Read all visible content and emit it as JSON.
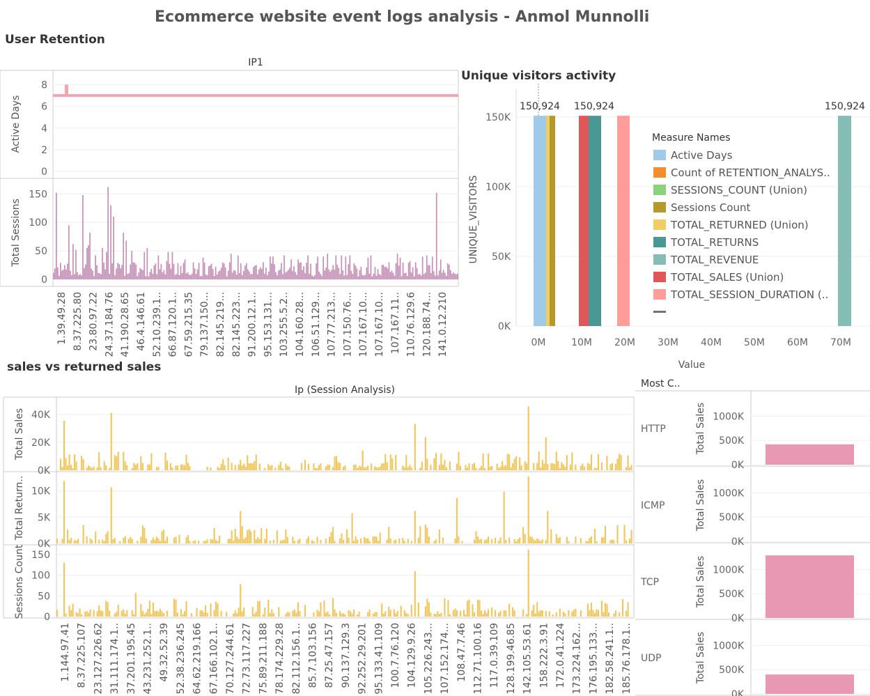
{
  "dashboard": {
    "title": "Ecommerce website event logs analysis - Anmol Munnolli",
    "colors": {
      "pink": "#f4a3b0",
      "purple": "#c490b6",
      "gold": "#f0c75e",
      "bar_pink": "#e898b3"
    }
  },
  "retention": {
    "section_title": "User Retention",
    "col_header": "IP1",
    "active_days": {
      "ylabel": "Active Days",
      "yticks": [
        "8",
        "6",
        "4",
        "2",
        "0"
      ],
      "ylim": [
        0,
        9
      ],
      "baseline": 7,
      "spike_value": 8
    },
    "total_sessions": {
      "ylabel": "Total Sessions",
      "yticks": [
        "150",
        "100",
        "50",
        "0"
      ],
      "ylim": [
        0,
        165
      ]
    },
    "x_labels": [
      "1.39.49.28",
      "8.37.225.80",
      "23.80.97.22",
      "24.37.184.76",
      "41.190.28.65",
      "46.4.146.61",
      "52.10.239.1..",
      "66.87.120.1..",
      "67.59.215.35",
      "79.137.150...",
      "82.145.219...",
      "82.145.223...",
      "91.200.12.1..",
      "95.153.131...",
      "103.255.5.2..",
      "104.160.28...",
      "106.51.129...",
      "107.77.213...",
      "107.150.76...",
      "107.167.10...",
      "107.167.10...",
      "107.167.11..",
      "110.76.129.6",
      "120.188.74...",
      "141.0.12.210"
    ]
  },
  "visitors": {
    "section_title": "Unique visitors activity",
    "ylabel": "UNIQUE_VISITORS",
    "xlabel": "Value",
    "yticks": [
      "150K",
      "100K",
      "50K",
      "0K"
    ],
    "xticks": [
      "0M",
      "10M",
      "20M",
      "30M",
      "40M",
      "50M",
      "60M",
      "70M"
    ],
    "value_labels": [
      "150,924",
      "150,924",
      "150,924"
    ],
    "legend_title": "Measure Names",
    "legend": [
      {
        "name": "Active Days",
        "color": "#a0cbe8"
      },
      {
        "name": "Count of RETENTION_ANALYS..",
        "color": "#f28e2b"
      },
      {
        "name": "SESSIONS_COUNT (Union)",
        "color": "#8cd17d"
      },
      {
        "name": "Sessions Count",
        "color": "#b6992d"
      },
      {
        "name": "TOTAL_RETURNED (Union)",
        "color": "#f1ce63"
      },
      {
        "name": "TOTAL_RETURNS",
        "color": "#499894"
      },
      {
        "name": "TOTAL_REVENUE",
        "color": "#86bcb6"
      },
      {
        "name": "TOTAL_SALES (Union)",
        "color": "#e15759"
      },
      {
        "name": "TOTAL_SESSION_DURATION (..",
        "color": "#ff9d9a"
      },
      {
        "name": "",
        "color": "#79706e"
      }
    ]
  },
  "sales": {
    "section_title": "sales vs returned sales",
    "col_header": "Ip (Session Analysis)",
    "rows": [
      {
        "ylabel": "Total Sales",
        "yticks": [
          "40K",
          "20K",
          "0K"
        ]
      },
      {
        "ylabel": "Total Return..",
        "yticks": [
          "10K",
          "5K",
          "0K"
        ]
      },
      {
        "ylabel": "Sessions Count",
        "yticks": [
          "150",
          "100",
          "50",
          "0"
        ]
      }
    ],
    "x_labels": [
      "1.144.97.41",
      "8.37.225.107",
      "23.127.226.62",
      "31.111.174.1..",
      "37.201.195.45",
      "43.231.252.1..",
      "49.32.52.39",
      "52.38.236.245",
      "64.62.219.166",
      "67.166.102.1..",
      "70.127.244.61",
      "72.73.117.227",
      "75.89.211.188",
      "78.174.229.28",
      "82.112.156.1..",
      "85.7.103.156",
      "87.25.47.157",
      "90.137.129.3",
      "92.252.29.201",
      "95.133.41.109",
      "100.7.76.120",
      "104.129.9.26",
      "105.226.243...",
      "107.152.174...",
      "108.47.7.46",
      "112.71.100.16",
      "117.0.39.109",
      "128.199.46.85",
      "142.105.53.61",
      "158.222.3.91",
      "172.0.41.224",
      "173.224.162...",
      "176.195.133...",
      "182.58.241.1..",
      "185.76.178.1.."
    ]
  },
  "protocol": {
    "header": "Most C..",
    "ylabel": "Total Sales",
    "yticks": [
      "1000K",
      "500K",
      "0K"
    ],
    "rows": [
      {
        "name": "HTTP",
        "value": 420000
      },
      {
        "name": "ICMP",
        "value": 0
      },
      {
        "name": "TCP",
        "value": 1290000
      },
      {
        "name": "UDP",
        "value": 400000
      }
    ]
  },
  "chart_data": [
    {
      "type": "bar",
      "title": "IP1",
      "ylabel": "Active Days",
      "note": "all IPs at 7 active days, one at 8",
      "ylim": [
        0,
        9
      ]
    },
    {
      "type": "bar",
      "title": "IP1",
      "ylabel": "Total Sessions",
      "ylim": [
        0,
        165
      ]
    },
    {
      "type": "bar",
      "title": "Unique visitors activity",
      "xlabel": "Value",
      "ylabel": "UNIQUE_VISITORS",
      "series": [
        {
          "name": "Active Days",
          "x": 0.1,
          "y": 150924
        },
        {
          "name": "Sessions Count",
          "x": 0.3,
          "y": 150924
        },
        {
          "name": "TOTAL_RETURNED (Union)",
          "x": 0.2,
          "y": 150924
        },
        {
          "name": "TOTAL_SALES (Union)",
          "x": 10.0,
          "y": 150924
        },
        {
          "name": "TOTAL_RETURNS",
          "x": 10.8,
          "y": 150924
        },
        {
          "name": "TOTAL_SESSION_DURATION (..",
          "x": 19.7,
          "y": 150924
        },
        {
          "name": "TOTAL_REVENUE",
          "x": 70.0,
          "y": 150924
        }
      ],
      "xlim": [
        -1,
        72
      ],
      "ylim": [
        0,
        170000
      ]
    },
    {
      "type": "bar",
      "title": "Ip (Session Analysis)",
      "ylabel": "Total Sales",
      "ylim": [
        0,
        50000
      ]
    },
    {
      "type": "bar",
      "title": "Ip (Session Analysis)",
      "ylabel": "Total Return..",
      "ylim": [
        0,
        13000
      ]
    },
    {
      "type": "bar",
      "title": "Ip (Session Analysis)",
      "ylabel": "Sessions Count",
      "ylim": [
        0,
        165
      ]
    },
    {
      "type": "bar",
      "title": "Most C..",
      "categories": [
        "HTTP",
        "ICMP",
        "TCP",
        "UDP"
      ],
      "values": [
        420000,
        0,
        1290000,
        400000
      ],
      "ylabel": "Total Sales",
      "ylim": [
        0,
        1350000
      ]
    }
  ]
}
